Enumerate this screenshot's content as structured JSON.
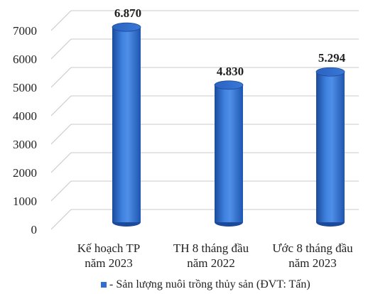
{
  "chart_data": {
    "type": "bar",
    "categories": [
      [
        "Kế hoạch TP",
        "năm 2023"
      ],
      [
        "TH 8 tháng đầu",
        "năm 2022"
      ],
      [
        "Ước 8 tháng đầu",
        "năm 2023"
      ]
    ],
    "series": [
      {
        "name": "Sản lượng nuôi trồng thủy sản (ĐVT: Tấn)",
        "values": [
          6870,
          4830,
          5294
        ],
        "data_labels": [
          "6.870",
          "4.830",
          "5.294"
        ]
      }
    ],
    "legend_text": "- Sản lượng nuôi trồng thủy sản (ĐVT: Tấn)",
    "ylim": [
      0,
      7000
    ],
    "yticks": [
      "0",
      "1000",
      "2000",
      "3000",
      "4000",
      "5000",
      "6000",
      "7000"
    ],
    "grid": true,
    "style": "3d-cylinder",
    "legend_position": "bottom",
    "colors": {
      "bar": "#2e6fd1",
      "bar_dark": "#1b4a9a",
      "bar_light": "#6ea0ec",
      "grid": "#c8c8c8"
    }
  }
}
